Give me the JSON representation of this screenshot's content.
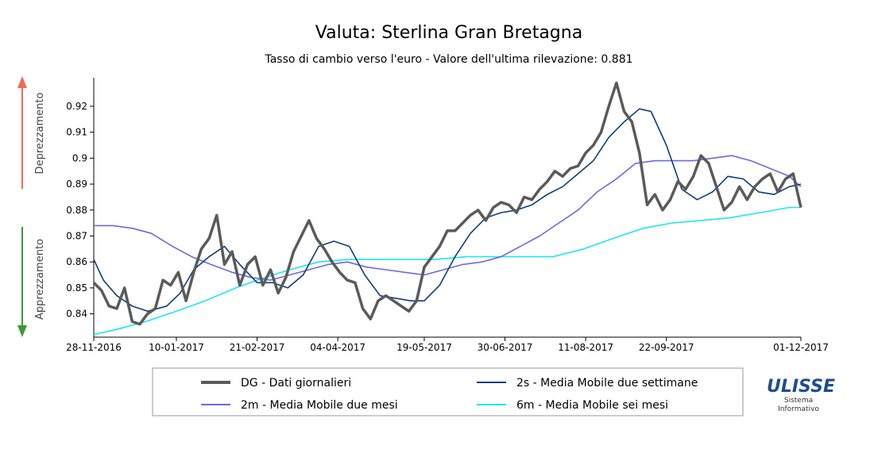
{
  "title": "Valuta: Sterlina Gran Bretagna",
  "subtitle": "Tasso di cambio verso l'euro - Valore dell'ultima rilevazione: 0.881",
  "side_labels": {
    "up": "Deprezzamento",
    "down": "Apprezzamento"
  },
  "logo": {
    "name": "ULISSE",
    "line1": "Sistema",
    "line2": "Informativo"
  },
  "colors": {
    "DG": "#5a5a5a",
    "s2": "#0d3f7a",
    "m2": "#6a6ae0",
    "m6": "#1ee6f0",
    "arrow_up": "#f26a55",
    "arrow_down": "#3c9a3c",
    "logo": "#1f4e8c"
  },
  "chart_data": {
    "type": "line",
    "title": "Valuta: Sterlina Gran Bretagna",
    "xlabel": "",
    "ylabel": "",
    "x_ticks": [
      "28-11-2016",
      "10-01-2017",
      "21-02-2017",
      "04-04-2017",
      "19-05-2017",
      "30-06-2017",
      "11-08-2017",
      "22-09-2017",
      "01-12-2017"
    ],
    "x_range": [
      "2016-11-28",
      "2017-12-01"
    ],
    "ylim": [
      0.831,
      0.931
    ],
    "y_ticks": [
      0.84,
      0.85,
      0.86,
      0.87,
      0.88,
      0.89,
      0.9,
      0.91,
      0.92
    ],
    "legend": "bottom-center",
    "grid": false,
    "legend_entries": [
      {
        "key": "DG",
        "label": "DG - Dati giornalieri"
      },
      {
        "key": "s2",
        "label": "2s - Media Mobile due settimane"
      },
      {
        "key": "m2",
        "label": "2m - Media Mobile due mesi"
      },
      {
        "key": "m6",
        "label": "6m - Media Mobile sei mesi"
      }
    ],
    "series": [
      {
        "name": "DG - Dati giornalieri",
        "key": "DG",
        "x": [
          "2016-11-28",
          "2016-12-02",
          "2016-12-06",
          "2016-12-10",
          "2016-12-14",
          "2016-12-18",
          "2016-12-22",
          "2016-12-26",
          "2016-12-30",
          "2017-01-03",
          "2017-01-07",
          "2017-01-11",
          "2017-01-15",
          "2017-01-19",
          "2017-01-23",
          "2017-01-27",
          "2017-01-31",
          "2017-02-04",
          "2017-02-08",
          "2017-02-12",
          "2017-02-16",
          "2017-02-20",
          "2017-02-24",
          "2017-02-28",
          "2017-03-04",
          "2017-03-08",
          "2017-03-12",
          "2017-03-16",
          "2017-03-20",
          "2017-03-24",
          "2017-03-28",
          "2017-04-01",
          "2017-04-05",
          "2017-04-09",
          "2017-04-13",
          "2017-04-17",
          "2017-04-21",
          "2017-04-25",
          "2017-04-29",
          "2017-05-03",
          "2017-05-07",
          "2017-05-11",
          "2017-05-15",
          "2017-05-19",
          "2017-05-23",
          "2017-05-27",
          "2017-05-31",
          "2017-06-04",
          "2017-06-08",
          "2017-06-12",
          "2017-06-16",
          "2017-06-20",
          "2017-06-24",
          "2017-06-28",
          "2017-07-02",
          "2017-07-06",
          "2017-07-10",
          "2017-07-14",
          "2017-07-18",
          "2017-07-22",
          "2017-07-26",
          "2017-07-30",
          "2017-08-03",
          "2017-08-07",
          "2017-08-11",
          "2017-08-15",
          "2017-08-19",
          "2017-08-23",
          "2017-08-27",
          "2017-08-31",
          "2017-09-04",
          "2017-09-08",
          "2017-09-12",
          "2017-09-16",
          "2017-09-20",
          "2017-09-24",
          "2017-09-28",
          "2017-10-02",
          "2017-10-06",
          "2017-10-10",
          "2017-10-14",
          "2017-10-18",
          "2017-10-22",
          "2017-10-26",
          "2017-10-30",
          "2017-11-03",
          "2017-11-07",
          "2017-11-11",
          "2017-11-15",
          "2017-11-19",
          "2017-11-23",
          "2017-11-27",
          "2017-12-01"
        ],
        "values": [
          0.852,
          0.849,
          0.843,
          0.842,
          0.85,
          0.837,
          0.836,
          0.84,
          0.842,
          0.853,
          0.851,
          0.856,
          0.845,
          0.856,
          0.865,
          0.869,
          0.878,
          0.859,
          0.864,
          0.851,
          0.859,
          0.862,
          0.851,
          0.857,
          0.848,
          0.854,
          0.864,
          0.87,
          0.876,
          0.869,
          0.865,
          0.86,
          0.856,
          0.853,
          0.852,
          0.842,
          0.838,
          0.845,
          0.847,
          0.845,
          0.843,
          0.841,
          0.845,
          0.858,
          0.862,
          0.866,
          0.872,
          0.872,
          0.875,
          0.878,
          0.88,
          0.876,
          0.881,
          0.883,
          0.882,
          0.879,
          0.885,
          0.884,
          0.888,
          0.891,
          0.895,
          0.893,
          0.896,
          0.897,
          0.902,
          0.905,
          0.91,
          0.92,
          0.929,
          0.918,
          0.914,
          0.902,
          0.882,
          0.886,
          0.88,
          0.884,
          0.891,
          0.888,
          0.893,
          0.901,
          0.898,
          0.889,
          0.88,
          0.883,
          0.889,
          0.884,
          0.889,
          0.892,
          0.894,
          0.887,
          0.892,
          0.894,
          0.881
        ]
      },
      {
        "name": "2s - Media Mobile due settimane",
        "key": "s2",
        "x": [
          "2016-11-28",
          "2016-12-03",
          "2016-12-10",
          "2016-12-18",
          "2016-12-26",
          "2017-01-05",
          "2017-01-12",
          "2017-01-19",
          "2017-01-27",
          "2017-02-04",
          "2017-02-12",
          "2017-02-21",
          "2017-03-01",
          "2017-03-09",
          "2017-03-17",
          "2017-03-25",
          "2017-04-02",
          "2017-04-10",
          "2017-04-18",
          "2017-04-26",
          "2017-05-04",
          "2017-05-12",
          "2017-05-19",
          "2017-05-27",
          "2017-06-04",
          "2017-06-12",
          "2017-06-20",
          "2017-06-28",
          "2017-07-06",
          "2017-07-14",
          "2017-07-22",
          "2017-07-30",
          "2017-08-07",
          "2017-08-15",
          "2017-08-23",
          "2017-08-31",
          "2017-09-08",
          "2017-09-14",
          "2017-09-22",
          "2017-09-30",
          "2017-10-08",
          "2017-10-16",
          "2017-10-24",
          "2017-11-01",
          "2017-11-09",
          "2017-11-17",
          "2017-11-25",
          "2017-12-01"
        ],
        "values": [
          0.861,
          0.853,
          0.847,
          0.843,
          0.841,
          0.843,
          0.848,
          0.857,
          0.862,
          0.866,
          0.859,
          0.852,
          0.852,
          0.85,
          0.855,
          0.866,
          0.868,
          0.866,
          0.855,
          0.847,
          0.846,
          0.845,
          0.845,
          0.851,
          0.862,
          0.871,
          0.877,
          0.879,
          0.88,
          0.882,
          0.886,
          0.889,
          0.894,
          0.899,
          0.908,
          0.914,
          0.919,
          0.918,
          0.905,
          0.888,
          0.884,
          0.887,
          0.893,
          0.892,
          0.887,
          0.886,
          0.889,
          0.89
        ]
      },
      {
        "name": "2m - Media Mobile due mesi",
        "key": "m2",
        "x": [
          "2016-11-28",
          "2016-12-08",
          "2016-12-18",
          "2016-12-28",
          "2017-01-08",
          "2017-01-18",
          "2017-01-28",
          "2017-02-08",
          "2017-02-18",
          "2017-02-28",
          "2017-03-10",
          "2017-03-20",
          "2017-03-30",
          "2017-04-09",
          "2017-04-19",
          "2017-04-29",
          "2017-05-09",
          "2017-05-19",
          "2017-05-29",
          "2017-06-08",
          "2017-06-18",
          "2017-06-28",
          "2017-07-08",
          "2017-07-18",
          "2017-07-28",
          "2017-08-07",
          "2017-08-17",
          "2017-08-27",
          "2017-09-06",
          "2017-09-16",
          "2017-09-26",
          "2017-10-06",
          "2017-10-16",
          "2017-10-26",
          "2017-11-05",
          "2017-11-15",
          "2017-11-25",
          "2017-12-01"
        ],
        "values": [
          0.874,
          0.874,
          0.873,
          0.871,
          0.866,
          0.862,
          0.859,
          0.856,
          0.854,
          0.853,
          0.855,
          0.857,
          0.859,
          0.86,
          0.858,
          0.857,
          0.856,
          0.855,
          0.857,
          0.859,
          0.86,
          0.862,
          0.866,
          0.87,
          0.875,
          0.88,
          0.887,
          0.892,
          0.898,
          0.899,
          0.899,
          0.899,
          0.9,
          0.901,
          0.899,
          0.896,
          0.893,
          0.889
        ]
      },
      {
        "name": "6m - Media Mobile sei mesi",
        "key": "m6",
        "x": [
          "2016-11-28",
          "2016-12-10",
          "2016-12-25",
          "2017-01-10",
          "2017-01-25",
          "2017-02-10",
          "2017-02-25",
          "2017-03-10",
          "2017-03-25",
          "2017-04-10",
          "2017-04-25",
          "2017-05-10",
          "2017-05-25",
          "2017-06-10",
          "2017-06-25",
          "2017-07-10",
          "2017-07-25",
          "2017-08-10",
          "2017-08-25",
          "2017-09-10",
          "2017-09-25",
          "2017-10-10",
          "2017-10-25",
          "2017-11-10",
          "2017-11-25",
          "2017-12-01"
        ],
        "values": [
          0.832,
          0.834,
          0.837,
          0.841,
          0.845,
          0.85,
          0.854,
          0.857,
          0.86,
          0.861,
          0.861,
          0.861,
          0.861,
          0.862,
          0.862,
          0.862,
          0.862,
          0.865,
          0.869,
          0.873,
          0.875,
          0.876,
          0.877,
          0.879,
          0.881,
          0.881
        ]
      }
    ]
  }
}
